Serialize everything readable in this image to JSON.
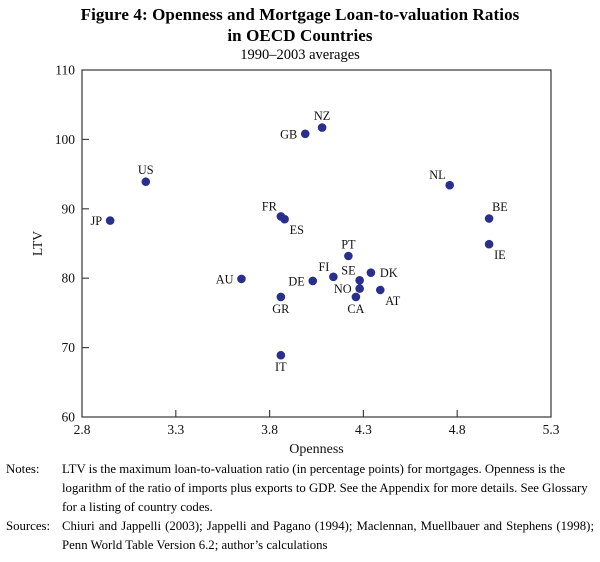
{
  "header": {
    "title_line1": "Figure 4: Openness and Mortgage Loan-to-valuation Ratios",
    "title_line2": "in OECD Countries",
    "subtitle": "1990–2003 averages"
  },
  "chart_data": {
    "type": "scatter",
    "title": "Figure 4: Openness and Mortgage Loan-to-valuation Ratios in OECD Countries",
    "subtitle": "1990–2003 averages",
    "xlabel": "Openness",
    "ylabel": "LTV",
    "xlim": [
      2.8,
      5.3
    ],
    "ylim": [
      60,
      110
    ],
    "xticks": [
      2.8,
      3.3,
      3.8,
      4.3,
      4.8,
      5.3
    ],
    "yticks": [
      60,
      70,
      80,
      90,
      100,
      110
    ],
    "grid": false,
    "legend": "none",
    "point_color": "#2a2f8e",
    "axis_color": "#444444",
    "points": [
      {
        "label": "JP",
        "x": 2.95,
        "y": 88.3,
        "label_pos": "left"
      },
      {
        "label": "US",
        "x": 3.14,
        "y": 93.9,
        "label_pos": "above"
      },
      {
        "label": "GB",
        "x": 3.99,
        "y": 100.8,
        "label_pos": "left"
      },
      {
        "label": "NZ",
        "x": 4.08,
        "y": 101.7,
        "label_pos": "above"
      },
      {
        "label": "FR",
        "x": 3.86,
        "y": 88.9,
        "label_pos": "above-left"
      },
      {
        "label": "ES",
        "x": 3.88,
        "y": 88.5,
        "label_pos": "below-right"
      },
      {
        "label": "NL",
        "x": 4.76,
        "y": 93.4,
        "label_pos": "above-left"
      },
      {
        "label": "BE",
        "x": 4.97,
        "y": 88.6,
        "label_pos": "above-right"
      },
      {
        "label": "IE",
        "x": 4.97,
        "y": 84.9,
        "label_pos": "below-right"
      },
      {
        "label": "AU",
        "x": 3.65,
        "y": 79.9,
        "label_pos": "left"
      },
      {
        "label": "DE",
        "x": 4.03,
        "y": 79.6,
        "label_pos": "left"
      },
      {
        "label": "FI",
        "x": 4.14,
        "y": 80.2,
        "label_pos": "above-left"
      },
      {
        "label": "SE",
        "x": 4.28,
        "y": 79.7,
        "label_pos": "above-left"
      },
      {
        "label": "PT",
        "x": 4.22,
        "y": 83.2,
        "label_pos": "above"
      },
      {
        "label": "DK",
        "x": 4.34,
        "y": 80.8,
        "label_pos": "right"
      },
      {
        "label": "NO",
        "x": 4.28,
        "y": 78.5,
        "label_pos": "left"
      },
      {
        "label": "CA",
        "x": 4.26,
        "y": 77.3,
        "label_pos": "below"
      },
      {
        "label": "AT",
        "x": 4.39,
        "y": 78.3,
        "label_pos": "below-right"
      },
      {
        "label": "GR",
        "x": 3.86,
        "y": 77.3,
        "label_pos": "below"
      },
      {
        "label": "IT",
        "x": 3.86,
        "y": 68.9,
        "label_pos": "below"
      }
    ]
  },
  "notes": {
    "notes_label": "Notes:",
    "notes_text": "LTV is the maximum loan-to-valuation ratio (in percentage points) for mortgages. Openness is the logarithm of the ratio of imports plus exports to GDP. See the Appendix for more details. See Glossary for a listing of country codes.",
    "sources_label": "Sources:",
    "sources_text": "Chiuri and Jappelli (2003); Jappelli and Pagano (1994); Maclennan, Muellbauer and Stephens (1998); Penn World Table Version 6.2; author’s calculations"
  }
}
